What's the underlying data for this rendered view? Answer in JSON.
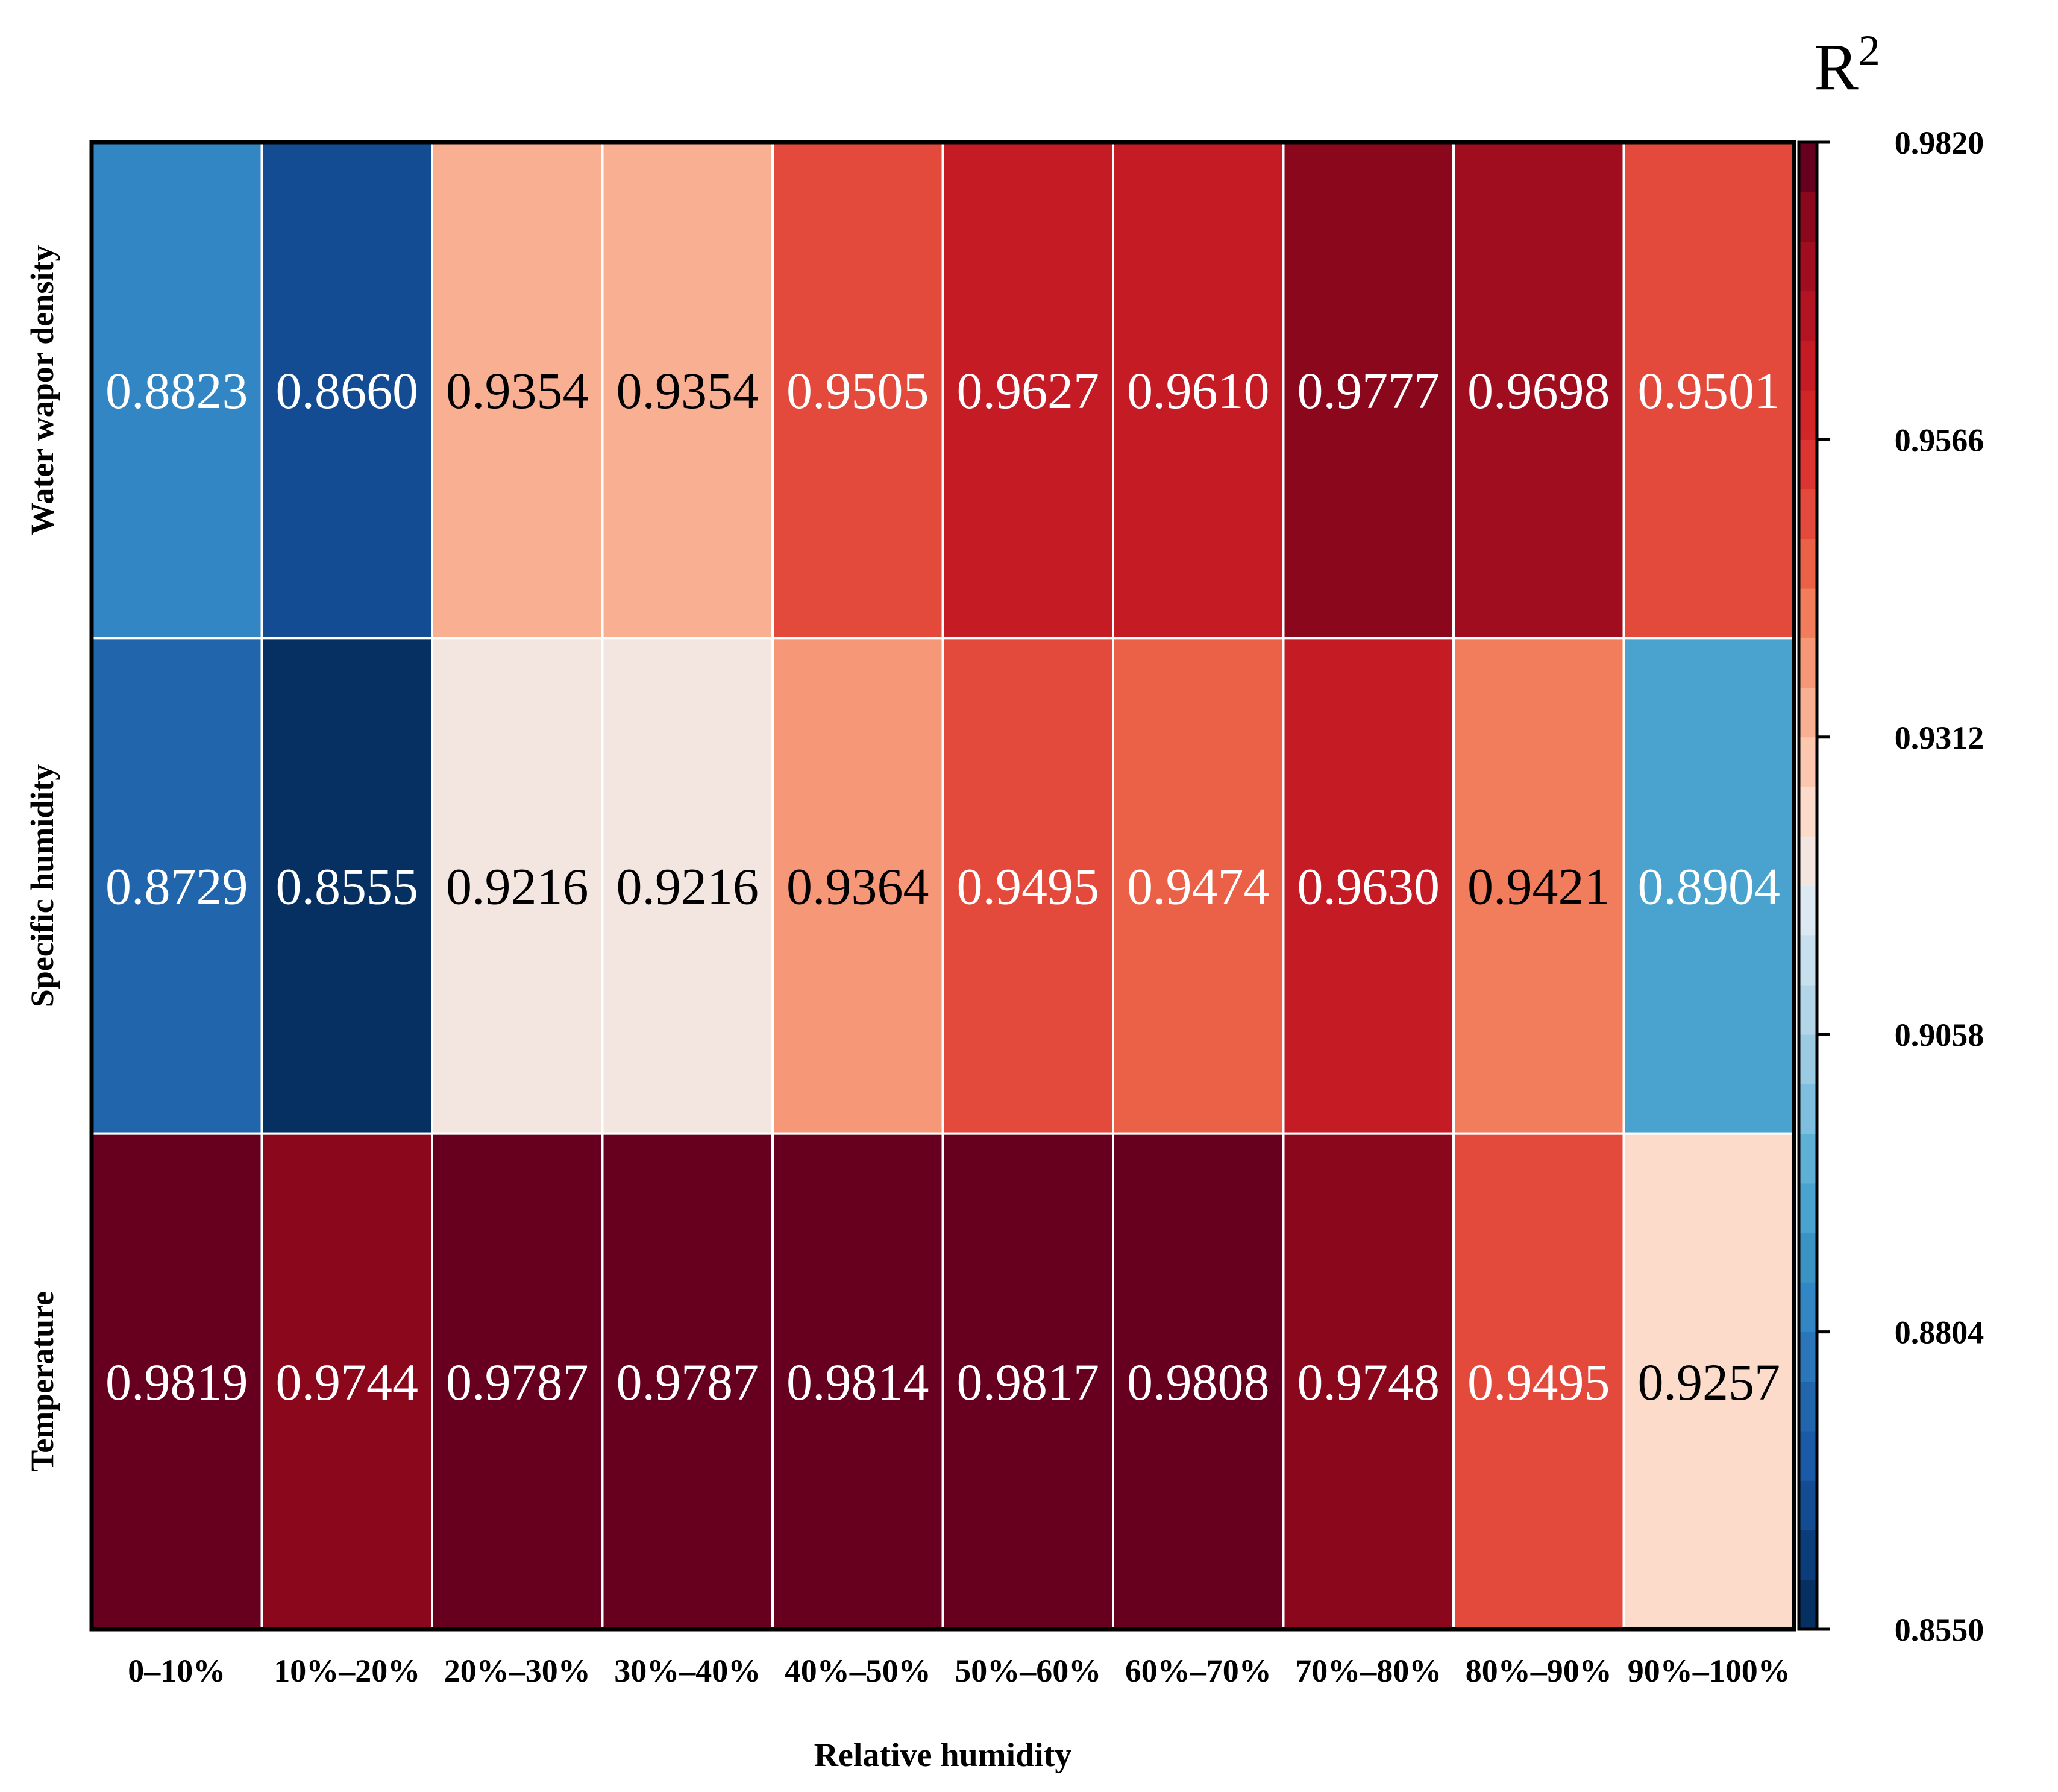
{
  "chart_data": {
    "type": "heatmap",
    "title": "",
    "xlabel": "Relative humidity",
    "ylabel": "",
    "x_categories": [
      "0–10%",
      "10%–20%",
      "20%–30%",
      "30%–40%",
      "40%–50%",
      "50%–60%",
      "60%–70%",
      "70%–80%",
      "80%–90%",
      "90%–100%"
    ],
    "y_categories": [
      "Water wapor density",
      "Specific humidity",
      "Temperature"
    ],
    "values": [
      [
        0.8823,
        0.866,
        0.9354,
        0.9354,
        0.9505,
        0.9627,
        0.961,
        0.9777,
        0.9698,
        0.9501
      ],
      [
        0.8729,
        0.8555,
        0.9216,
        0.9216,
        0.9364,
        0.9495,
        0.9474,
        0.963,
        0.9421,
        0.8904
      ],
      [
        0.9819,
        0.9744,
        0.9787,
        0.9787,
        0.9814,
        0.9817,
        0.9808,
        0.9748,
        0.9495,
        0.9257
      ]
    ],
    "value_labels": [
      [
        "0.8823",
        "0.8660",
        "0.9354",
        "0.9354",
        "0.9505",
        "0.9627",
        "0.9610",
        "0.9777",
        "0.9698",
        "0.9501"
      ],
      [
        "0.8729",
        "0.8555",
        "0.9216",
        "0.9216",
        "0.9364",
        "0.9495",
        "0.9474",
        "0.9630",
        "0.9421",
        "0.8904"
      ],
      [
        "0.9819",
        "0.9744",
        "0.9787",
        "0.9787",
        "0.9814",
        "0.9817",
        "0.9808",
        "0.9748",
        "0.9495",
        "0.9257"
      ]
    ],
    "colorbar": {
      "title_base": "R",
      "title_sup": "2",
      "range": [
        0.855,
        0.982
      ],
      "ticks": [
        0.855,
        0.8804,
        0.9058,
        0.9312,
        0.9566,
        0.982
      ],
      "tick_labels": [
        "0.8550",
        "0.8804",
        "0.9058",
        "0.9312",
        "0.9566",
        "0.9820"
      ],
      "levels": 30,
      "colors": [
        "#053061",
        "#0a3d7a",
        "#144c94",
        "#1b5aa6",
        "#2166ac",
        "#2a76b8",
        "#3286c3",
        "#3a93c3",
        "#4aa3ce",
        "#5fb0d6",
        "#7ebfdf",
        "#9acbe3",
        "#b2d6e8",
        "#c8e0ee",
        "#dde9f2",
        "#f3e6e1",
        "#fcdbcb",
        "#fbc7ae",
        "#f9b092",
        "#f69878",
        "#f17d5c",
        "#ea6148",
        "#e44a3b",
        "#dc3430",
        "#d22527",
        "#c51b24",
        "#b31422",
        "#a00d1f",
        "#8a071c",
        "#67001f"
      ]
    }
  },
  "colors": {
    "cell_text_light": "#ffffff",
    "cell_text_dark": "#000000",
    "frame": "#000000",
    "grid": "#ffffff"
  }
}
